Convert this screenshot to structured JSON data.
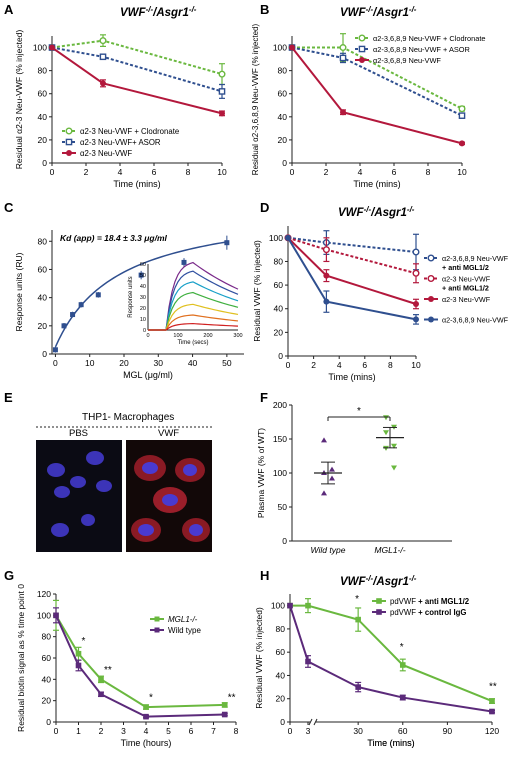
{
  "colors": {
    "green": "#6ab83f",
    "blue": "#2f4f8f",
    "red": "#b3183c",
    "purple": "#5b2a7a",
    "lightblue": "#6a83b8",
    "black": "#222222"
  },
  "panels": {
    "A": {
      "letter": "A",
      "title": "VWF-/-/Asgr1-/-"
    },
    "B": {
      "letter": "B",
      "title": "VWF-/-/Asgr1-/-"
    },
    "C": {
      "letter": "C",
      "annotation": "Kd (app) = 18.4 ± 3.3 μg/ml"
    },
    "D": {
      "letter": "D",
      "title": "VWF-/-/Asgr1-/-"
    },
    "E": {
      "letter": "E",
      "title": "THP1- Macrophages",
      "label_left": "PBS",
      "label_right": "VWF"
    },
    "F": {
      "letter": "F",
      "sig": "*"
    },
    "G": {
      "letter": "G",
      "sig": [
        "*",
        "**",
        "*",
        "**"
      ]
    },
    "H": {
      "letter": "H",
      "title": "VWF-/-/Asgr1-/-",
      "sig": [
        "*",
        "*",
        "**"
      ]
    }
  },
  "chart_data": [
    {
      "id": "A",
      "type": "line",
      "xlabel": "Time (mins)",
      "ylabel": "Residual α2-3 Neu-VWF (% injected)",
      "x": [
        0,
        3,
        10
      ],
      "xticks": [
        0,
        2,
        4,
        6,
        8,
        10
      ],
      "yticks": [
        0,
        20,
        40,
        60,
        80,
        100
      ],
      "xlim": [
        0,
        10
      ],
      "ylim": [
        0,
        110
      ],
      "legend": "bottom-left",
      "series": [
        {
          "name": "α2-3 Neu-VWF + Clodronate",
          "color": "green",
          "dash": true,
          "marker": "open-circle",
          "values": [
            100,
            106,
            77
          ],
          "err": [
            0,
            5,
            9
          ]
        },
        {
          "name": "α2-3 Neu-VWF+ ASOR",
          "color": "blue",
          "dash": true,
          "marker": "open-square",
          "values": [
            100,
            92,
            62
          ],
          "err": [
            0,
            2,
            6
          ]
        },
        {
          "name": "α2-3 Neu-VWF",
          "color": "red",
          "dash": false,
          "marker": "circle",
          "values": [
            100,
            69,
            43
          ],
          "err": [
            0,
            3,
            2
          ]
        }
      ]
    },
    {
      "id": "B",
      "type": "line",
      "xlabel": "Time (mins)",
      "ylabel": "Residual α2-3,6,8,9 Neu-VWF (% injected)",
      "x": [
        0,
        3,
        10
      ],
      "xticks": [
        0,
        2,
        4,
        6,
        8,
        10
      ],
      "yticks": [
        0,
        20,
        40,
        60,
        80,
        100
      ],
      "xlim": [
        0,
        10
      ],
      "ylim": [
        0,
        110
      ],
      "legend": "top-right",
      "series": [
        {
          "name": "α2-3,6,8,9 Neu-VWF + Clodronate",
          "color": "green",
          "dash": true,
          "marker": "open-circle",
          "values": [
            100,
            100,
            47
          ],
          "err": [
            0,
            12,
            2
          ]
        },
        {
          "name": "α2-3,6,8,9 Neu-VWF + ASOR",
          "color": "blue",
          "dash": true,
          "marker": "open-square",
          "values": [
            100,
            91,
            41
          ],
          "err": [
            0,
            4,
            2
          ]
        },
        {
          "name": "α2-3,6,8,9 Neu-VWF",
          "color": "red",
          "dash": false,
          "marker": "circle",
          "values": [
            100,
            44,
            17
          ],
          "err": [
            0,
            2,
            1
          ]
        }
      ]
    },
    {
      "id": "C",
      "type": "scatter",
      "xlabel": "MGL (μg/ml)",
      "ylabel": "Response units (RU)",
      "x": [
        0,
        2.5,
        5,
        7.5,
        12.5,
        25,
        37.5,
        50
      ],
      "values": [
        3,
        20,
        28,
        35,
        42,
        56,
        65,
        79
      ],
      "err": [
        2,
        2,
        2,
        2,
        2,
        3,
        3,
        5
      ],
      "xticks": [
        0,
        10,
        20,
        30,
        40,
        50
      ],
      "yticks": [
        0,
        20,
        40,
        60,
        80
      ],
      "xlim": [
        -1,
        55
      ],
      "ylim": [
        0,
        88
      ],
      "inset": {
        "type": "line",
        "xlabel": "Time (secs)",
        "ylabel": "Response units",
        "xticks": [
          0,
          100,
          200,
          300
        ],
        "yticks": [
          0,
          10,
          20,
          30,
          40,
          50,
          60
        ],
        "series_colors": [
          "#7a2a8a",
          "#3050a0",
          "#18a0c8",
          "#40b040",
          "#e0c020",
          "#e07020",
          "#d02020"
        ],
        "plateaus": [
          63,
          55,
          45,
          35,
          24,
          14,
          6
        ]
      }
    },
    {
      "id": "D",
      "type": "line",
      "xlabel": "Time (mins)",
      "ylabel": "Residual VWF (% injected)",
      "x": [
        0,
        3,
        10
      ],
      "xticks": [
        0,
        2,
        4,
        6,
        8,
        10
      ],
      "yticks": [
        0,
        20,
        40,
        60,
        80,
        100
      ],
      "xlim": [
        0,
        10
      ],
      "ylim": [
        0,
        110
      ],
      "legend": "right",
      "series": [
        {
          "name": "α2-3,6,8,9 Neu-VWF",
          "name2": "+ anti MGL1/2",
          "color": "blue",
          "dash": true,
          "marker": "open-circle",
          "values": [
            100,
            96,
            88
          ],
          "err": [
            0,
            10,
            15
          ]
        },
        {
          "name": "α2-3 Neu-VWF",
          "name2": "+ anti MGL1/2",
          "color": "red",
          "dash": true,
          "marker": "open-circle",
          "values": [
            100,
            90,
            70
          ],
          "err": [
            0,
            10,
            8
          ]
        },
        {
          "name": "α2-3 Neu-VWF",
          "color": "red",
          "dash": false,
          "marker": "circle",
          "values": [
            100,
            68,
            44
          ],
          "err": [
            0,
            5,
            4
          ]
        },
        {
          "name": "α2-3,6,8,9 Neu-VWF",
          "color": "blue",
          "dash": false,
          "marker": "circle",
          "values": [
            100,
            46,
            31
          ],
          "err": [
            0,
            9,
            4
          ]
        }
      ]
    },
    {
      "id": "F",
      "type": "scatter",
      "ylabel": "Plasma VWF (% of WT)",
      "categories": [
        "Wild type",
        "MGL1-/-"
      ],
      "yticks": [
        0,
        50,
        100,
        150,
        200
      ],
      "ylim": [
        0,
        200
      ],
      "groups": [
        {
          "name": "Wild type",
          "color": "purple",
          "points": [
            148,
            105,
            100,
            92,
            70
          ],
          "mean": 100,
          "sem": 16
        },
        {
          "name": "MGL1-/-",
          "color": "green",
          "points": [
            182,
            168,
            160,
            140,
            137,
            108
          ],
          "mean": 152,
          "sem": 15
        }
      ]
    },
    {
      "id": "G",
      "type": "line",
      "xlabel": "Time (hours)",
      "ylabel": "Residual biotin signal as % time point 0",
      "x": [
        0,
        1,
        2,
        4,
        7.5
      ],
      "xticks": [
        0,
        1,
        2,
        3,
        4,
        5,
        6,
        7,
        8
      ],
      "yticks": [
        0,
        20,
        40,
        60,
        80,
        100,
        120
      ],
      "xlim": [
        0,
        8
      ],
      "ylim": [
        0,
        120
      ],
      "legend": "top-right",
      "series": [
        {
          "name": "MGL1-/-",
          "color": "green",
          "values": [
            100,
            64,
            40,
            14,
            16
          ],
          "err": [
            14,
            6,
            3,
            2,
            2
          ]
        },
        {
          "name": "Wild type",
          "color": "purple",
          "values": [
            100,
            53,
            26,
            5,
            7
          ],
          "err": [
            7,
            5,
            2,
            1,
            1
          ]
        }
      ]
    },
    {
      "id": "H",
      "type": "line",
      "xlabel": "Time (mins)",
      "ylabel": "Residual VWF (% injected)",
      "x": [
        0,
        3,
        30,
        60,
        120
      ],
      "xticks": [
        0,
        3,
        30,
        60,
        90,
        120
      ],
      "yticks": [
        0,
        20,
        40,
        60,
        80,
        100
      ],
      "ylim": [
        0,
        110
      ],
      "legend": "top-right",
      "series": [
        {
          "name": "pdVWF",
          "name2": " + anti MGL1/2",
          "color": "green",
          "values": [
            100,
            100,
            88,
            49,
            18
          ],
          "err": [
            0,
            6,
            10,
            5,
            2
          ]
        },
        {
          "name": "pdVWF",
          "name2": " + control IgG",
          "color": "purple",
          "values": [
            100,
            52,
            30,
            21,
            9
          ],
          "err": [
            0,
            5,
            4,
            2,
            1
          ]
        }
      ]
    }
  ]
}
